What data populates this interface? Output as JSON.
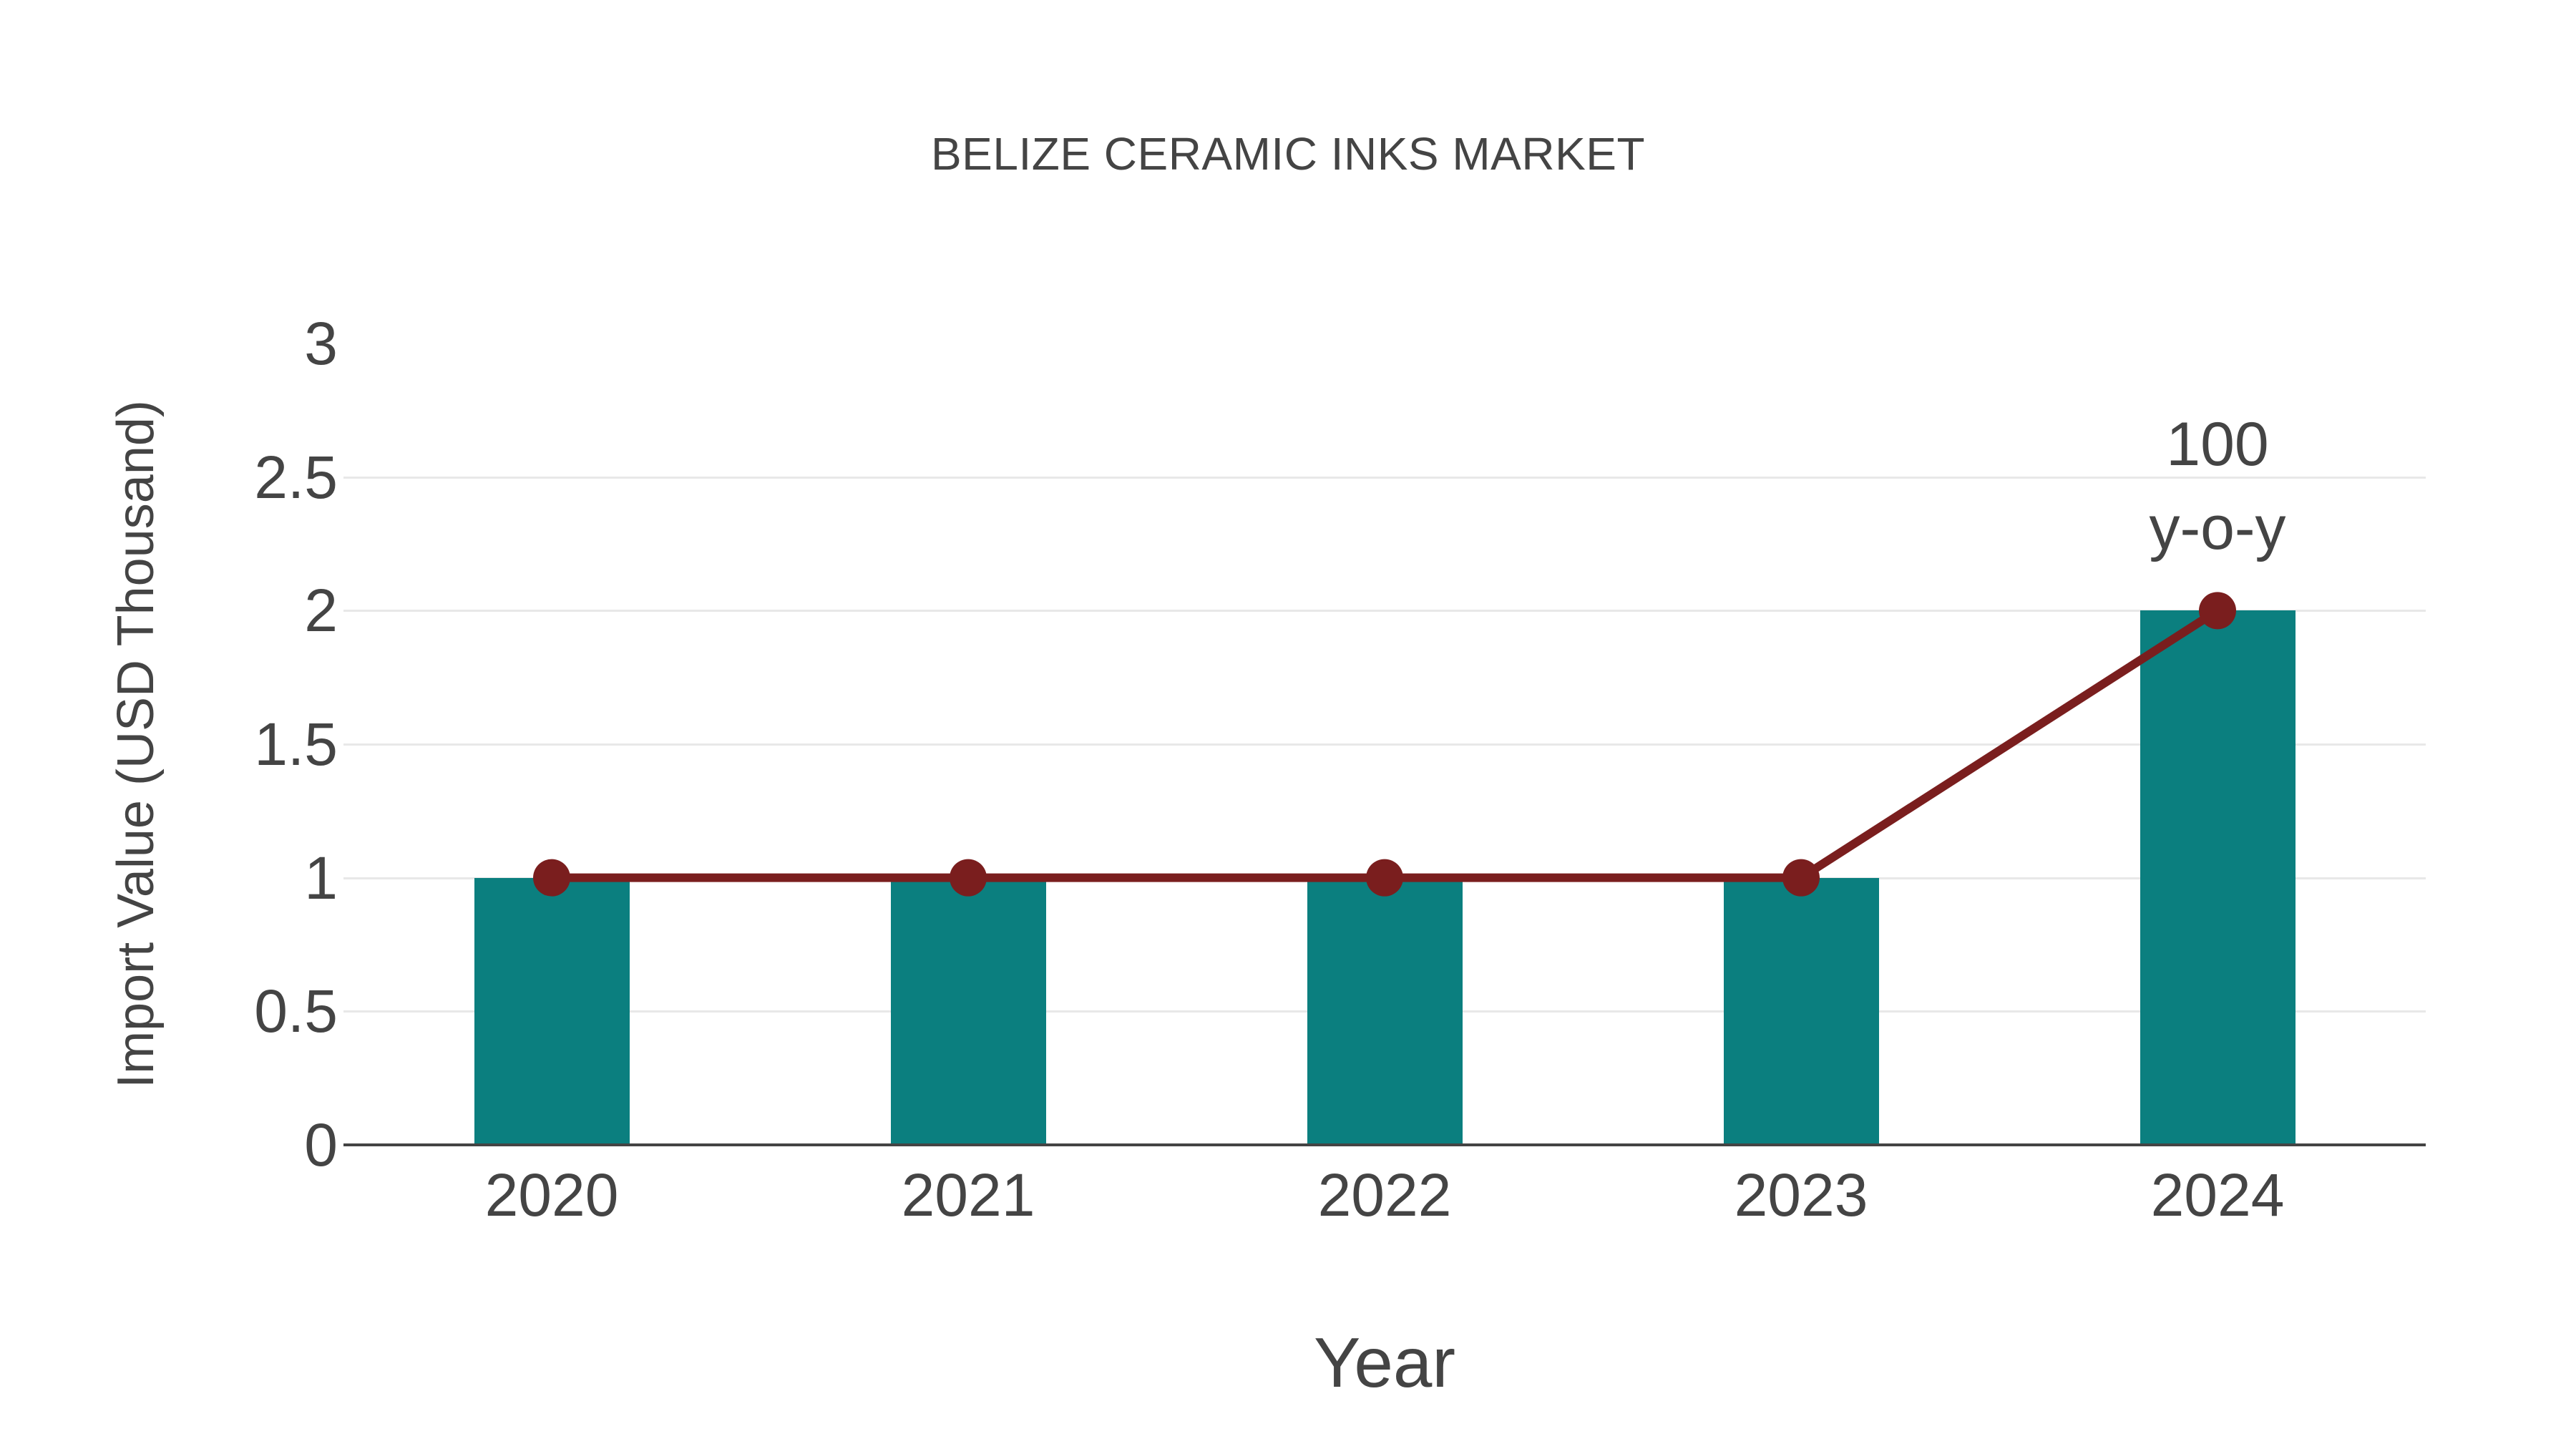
{
  "chart_data": {
    "type": "bar",
    "title": "BELIZE CERAMIC INKS MARKET",
    "xlabel": "Year",
    "ylabel": "Import Value (USD Thousand)",
    "categories": [
      "2020",
      "2021",
      "2022",
      "2023",
      "2024"
    ],
    "bar_values": [
      1,
      1,
      1,
      1,
      2
    ],
    "line_values": [
      1,
      1,
      1,
      1,
      2
    ],
    "ylim": [
      0,
      3
    ],
    "yticks": [
      0,
      0.5,
      1,
      1.5,
      2,
      2.5,
      3
    ],
    "grid": true,
    "legend": false,
    "annotation": {
      "line1": "100",
      "line2": "y-o-y",
      "category": "2024",
      "value": 2
    },
    "colors": {
      "bar": "#0b7f7f",
      "line": "#7a1e1e",
      "grid": "#e8e8e8",
      "axis": "#444444",
      "text": "#444444"
    }
  }
}
